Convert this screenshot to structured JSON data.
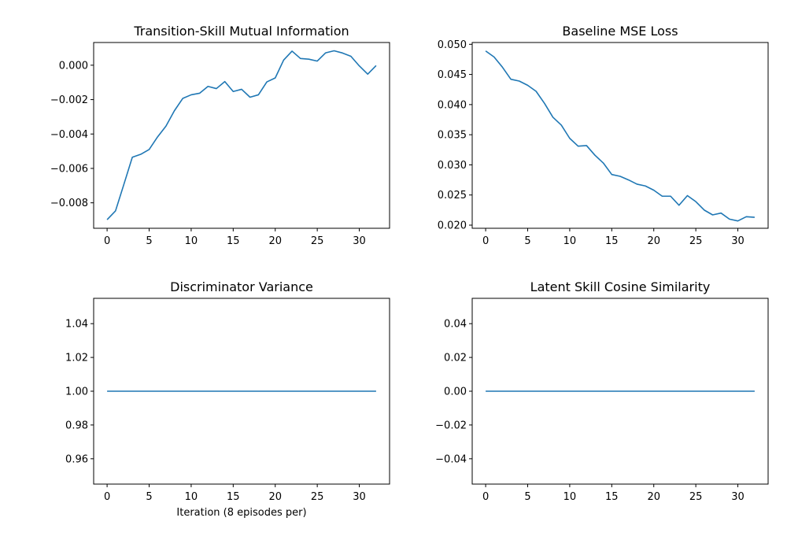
{
  "figure": {
    "xlabel": "Iteration (8 episodes per)"
  },
  "chart_data": [
    {
      "type": "line",
      "title": "Transition-Skill Mutual Information",
      "xlabel": "",
      "ylabel": "",
      "color": "#1f77b4",
      "xlim": [
        -1.6,
        33.6
      ],
      "ylim": [
        -0.00948,
        0.00132
      ],
      "xticks": [
        0,
        5,
        10,
        15,
        20,
        25,
        30
      ],
      "yticks": [
        -0.008,
        -0.006,
        -0.004,
        -0.002,
        0.0
      ],
      "ytick_labels": [
        "−0.008",
        "−0.006",
        "−0.004",
        "−0.002",
        "0.000"
      ],
      "x": [
        0,
        1,
        2,
        3,
        4,
        5,
        6,
        7,
        8,
        9,
        10,
        11,
        12,
        13,
        14,
        15,
        16,
        17,
        18,
        19,
        20,
        21,
        22,
        23,
        24,
        25,
        26,
        27,
        28,
        29,
        30,
        31,
        32
      ],
      "y": [
        -0.00898,
        -0.00847,
        -0.00692,
        -0.00535,
        -0.00518,
        -0.0049,
        -0.00417,
        -0.00354,
        -0.00265,
        -0.00193,
        -0.00172,
        -0.00163,
        -0.00123,
        -0.00136,
        -0.00095,
        -0.00153,
        -0.0014,
        -0.00186,
        -0.00172,
        -0.00097,
        -0.00074,
        0.0003,
        0.00082,
        0.00039,
        0.00035,
        0.00024,
        0.00072,
        0.00084,
        0.00071,
        0.00052,
        -4e-05,
        -0.00052,
        -2e-05
      ]
    },
    {
      "type": "line",
      "title": "Baseline MSE Loss",
      "xlabel": "",
      "ylabel": "",
      "color": "#1f77b4",
      "xlim": [
        -1.6,
        33.6
      ],
      "ylim": [
        0.01948,
        0.0503
      ],
      "xticks": [
        0,
        5,
        10,
        15,
        20,
        25,
        30
      ],
      "yticks": [
        0.02,
        0.025,
        0.03,
        0.035,
        0.04,
        0.045,
        0.05
      ],
      "ytick_labels": [
        "0.020",
        "0.025",
        "0.030",
        "0.035",
        "0.040",
        "0.045",
        "0.050"
      ],
      "x": [
        0,
        1,
        2,
        3,
        4,
        5,
        6,
        7,
        8,
        9,
        10,
        11,
        12,
        13,
        14,
        15,
        16,
        17,
        18,
        19,
        20,
        21,
        22,
        23,
        24,
        25,
        26,
        27,
        28,
        29,
        30,
        31,
        32
      ],
      "y": [
        0.0489,
        0.0479,
        0.0462,
        0.0442,
        0.0439,
        0.0432,
        0.0422,
        0.0402,
        0.0379,
        0.0366,
        0.0344,
        0.0331,
        0.0332,
        0.0316,
        0.0303,
        0.0284,
        0.0281,
        0.0275,
        0.0268,
        0.0265,
        0.0258,
        0.0248,
        0.0248,
        0.0233,
        0.0249,
        0.0239,
        0.0225,
        0.0217,
        0.022,
        0.021,
        0.0207,
        0.0214,
        0.0213
      ]
    },
    {
      "type": "line",
      "title": "Discriminator Variance",
      "xlabel": "Iteration (8 episodes per)",
      "ylabel": "",
      "color": "#1f77b4",
      "xlim": [
        -1.6,
        33.6
      ],
      "ylim": [
        0.945,
        1.055
      ],
      "xticks": [
        0,
        5,
        10,
        15,
        20,
        25,
        30
      ],
      "yticks": [
        0.96,
        0.98,
        1.0,
        1.02,
        1.04
      ],
      "ytick_labels": [
        "0.96",
        "0.98",
        "1.00",
        "1.02",
        "1.04"
      ],
      "x": [
        0,
        1,
        2,
        3,
        4,
        5,
        6,
        7,
        8,
        9,
        10,
        11,
        12,
        13,
        14,
        15,
        16,
        17,
        18,
        19,
        20,
        21,
        22,
        23,
        24,
        25,
        26,
        27,
        28,
        29,
        30,
        31,
        32
      ],
      "y": [
        1,
        1,
        1,
        1,
        1,
        1,
        1,
        1,
        1,
        1,
        1,
        1,
        1,
        1,
        1,
        1,
        1,
        1,
        1,
        1,
        1,
        1,
        1,
        1,
        1,
        1,
        1,
        1,
        1,
        1,
        1,
        1,
        1
      ]
    },
    {
      "type": "line",
      "title": "Latent Skill Cosine Similarity",
      "xlabel": "",
      "ylabel": "",
      "color": "#1f77b4",
      "xlim": [
        -1.6,
        33.6
      ],
      "ylim": [
        -0.055,
        0.055
      ],
      "xticks": [
        0,
        5,
        10,
        15,
        20,
        25,
        30
      ],
      "yticks": [
        -0.04,
        -0.02,
        0.0,
        0.02,
        0.04
      ],
      "ytick_labels": [
        "−0.04",
        "−0.02",
        "0.00",
        "0.02",
        "0.04"
      ],
      "x": [
        0,
        1,
        2,
        3,
        4,
        5,
        6,
        7,
        8,
        9,
        10,
        11,
        12,
        13,
        14,
        15,
        16,
        17,
        18,
        19,
        20,
        21,
        22,
        23,
        24,
        25,
        26,
        27,
        28,
        29,
        30,
        31,
        32
      ],
      "y": [
        0,
        0,
        0,
        0,
        0,
        0,
        0,
        0,
        0,
        0,
        0,
        0,
        0,
        0,
        0,
        0,
        0,
        0,
        0,
        0,
        0,
        0,
        0,
        0,
        0,
        0,
        0,
        0,
        0,
        0,
        0,
        0,
        0
      ]
    }
  ]
}
